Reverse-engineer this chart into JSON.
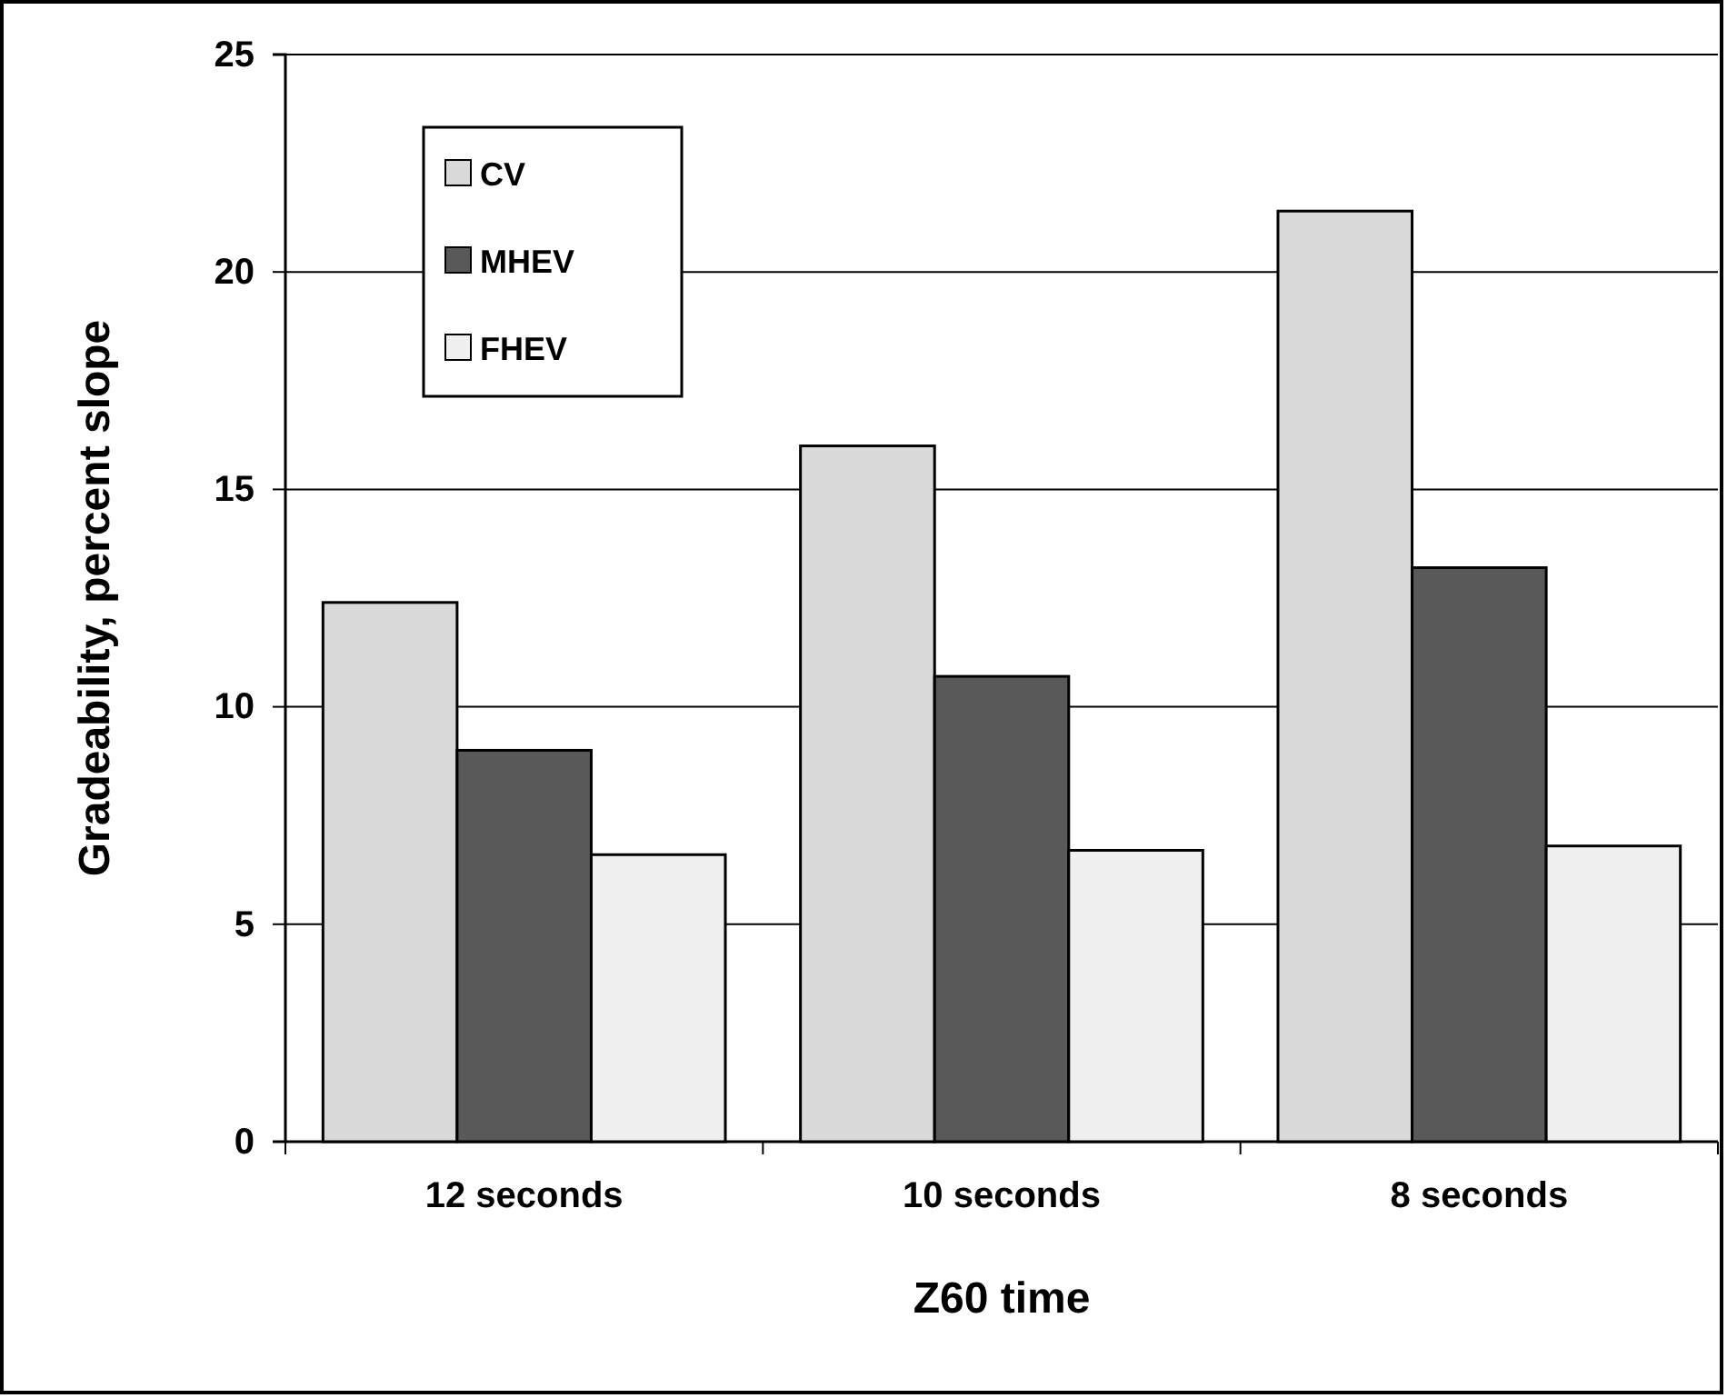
{
  "chart_data": {
    "type": "bar",
    "xlabel": "Z60 time",
    "ylabel": "Gradeability, percent slope",
    "categories": [
      "12 seconds",
      "10 seconds",
      "8 seconds"
    ],
    "series": [
      {
        "name": "CV",
        "color": "#d9d9d9",
        "values": [
          12.4,
          16.0,
          21.4
        ]
      },
      {
        "name": "MHEV",
        "color": "#595959",
        "values": [
          9.0,
          10.7,
          13.2
        ]
      },
      {
        "name": "FHEV",
        "color": "#efefef",
        "values": [
          6.6,
          6.7,
          6.8
        ]
      }
    ],
    "ylim": [
      0,
      25
    ],
    "yticks": [
      0,
      5,
      10,
      15,
      20,
      25
    ],
    "grid": "y",
    "legend": "top left"
  }
}
